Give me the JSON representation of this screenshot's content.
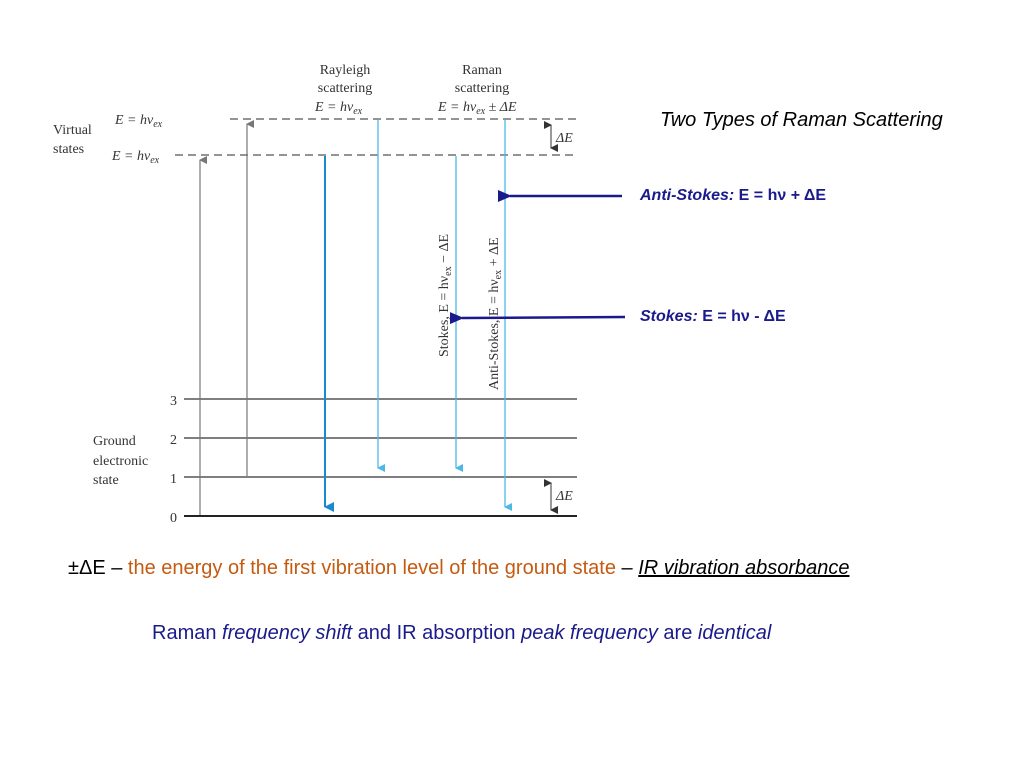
{
  "slide": {
    "title": "Two Types of Raman Scattering"
  },
  "diagram": {
    "header_rayleigh": [
      "Rayleigh",
      "scattering",
      "E = hν"
    ],
    "header_rayleigh_sub": "ex",
    "header_raman": [
      "Raman",
      "scattering",
      "E = hν"
    ],
    "header_raman_sub": "ex",
    "header_raman_suffix": " ± ΔE",
    "virtual_states_label": [
      "Virtual",
      "states"
    ],
    "energy_level_upper": "E = hν",
    "energy_level_lower": "E = hν",
    "energy_level_sub": "ex",
    "delta_e_top": "ΔE",
    "delta_e_bottom": "ΔE",
    "ground_state_label": [
      "Ground",
      "electronic",
      "state"
    ],
    "levels": [
      "0",
      "1",
      "2",
      "3"
    ],
    "stokes_vertical": "Stokes, E = hν",
    "stokes_vertical_sub": "ex",
    "stokes_vertical_suffix": " − ΔE",
    "antistokes_vertical": "Anti-Stokes, E = hν",
    "antistokes_vertical_sub": "ex",
    "antistokes_vertical_suffix": " + ΔE",
    "colors": {
      "scatter_line": "#4db8e8",
      "arrow": "#1a1a8c",
      "level_line": "#333333",
      "dashed": "#555555"
    }
  },
  "annotations": {
    "anti_stokes_label": "Anti-Stokes:",
    "anti_stokes_formula": " E = hν + ΔE",
    "stokes_label": "Stokes:",
    "stokes_formula": " E = hν - ΔE"
  },
  "notes": {
    "line1_prefix": "±ΔE – ",
    "line1_orange": "the energy of the first vibration level of the ground state",
    "line1_dash": " – ",
    "line1_underlined": "IR vibration absorbance",
    "line2_a": "Raman ",
    "line2_b": "frequency shift",
    "line2_c": " and IR absorption ",
    "line2_d": "peak frequency",
    "line2_e": " are ",
    "line2_f": "identical"
  }
}
